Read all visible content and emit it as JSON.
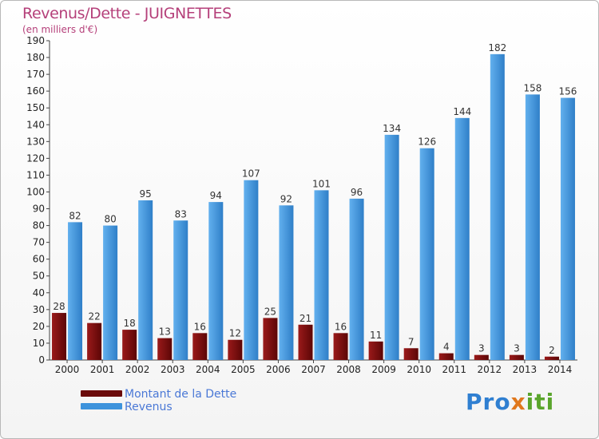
{
  "chart_data": {
    "type": "bar",
    "title": "Revenus/Dette - JUIGNETTES",
    "subtitle": "(en milliers d'€)",
    "xlabel": "",
    "ylabel": "",
    "ylim": [
      0,
      190
    ],
    "ytick_step": 10,
    "grid": false,
    "legend_position": "bottom-left",
    "categories": [
      "2000",
      "2001",
      "2002",
      "2003",
      "2004",
      "2005",
      "2006",
      "2007",
      "2008",
      "2009",
      "2010",
      "2011",
      "2012",
      "2013",
      "2014"
    ],
    "series": [
      {
        "name": "Montant de la Dette",
        "color": "#7a0d0d",
        "values": [
          28,
          22,
          18,
          13,
          16,
          12,
          25,
          21,
          16,
          11,
          7,
          4,
          3,
          3,
          2
        ]
      },
      {
        "name": "Revenus",
        "color": "#3d93dc",
        "values": [
          82,
          80,
          95,
          83,
          94,
          107,
          92,
          101,
          96,
          134,
          126,
          144,
          182,
          158,
          156
        ]
      }
    ]
  },
  "logo": {
    "part1": "Pro",
    "part2": "x",
    "part3": "iti"
  }
}
